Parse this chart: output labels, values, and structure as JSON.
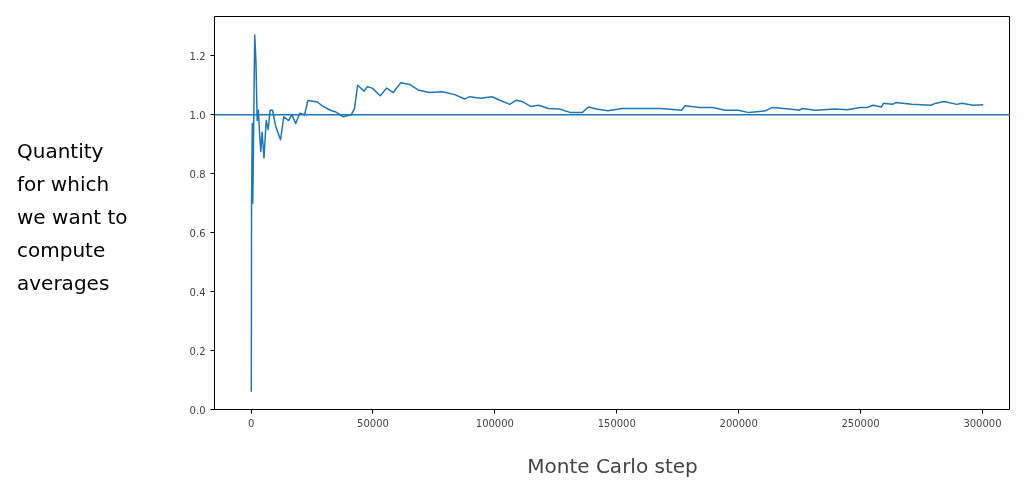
{
  "chart_data": {
    "type": "line",
    "xlabel": "Monte Carlo step",
    "ylabel": "Quantity for which we want to compute averages",
    "xlim": [
      -15000,
      311500
    ],
    "ylim": [
      0,
      1.333
    ],
    "xticks": [
      0,
      50000,
      100000,
      150000,
      200000,
      250000,
      300000
    ],
    "yticks": [
      {
        "value": 0,
        "label": "0.0"
      },
      {
        "value": 0.2,
        "label": "0.2"
      },
      {
        "value": 0.4,
        "label": "0.4"
      },
      {
        "value": 0.6,
        "label": "0.6"
      },
      {
        "value": 0.8,
        "label": "0.8"
      },
      {
        "value": 1.0,
        "label": "1.0"
      },
      {
        "value": 1.2,
        "label": "1.2"
      }
    ],
    "grid": false,
    "marker": "none",
    "line_style": "solid",
    "ref_lines": [
      {
        "axis": "y",
        "value": 1.0,
        "color": "#1f77b4"
      }
    ],
    "x": [
      100,
      200,
      500,
      700,
      1500,
      2000,
      2500,
      3000,
      3600,
      4000,
      4500,
      5300,
      6200,
      7000,
      7800,
      8800,
      10100,
      12100,
      13400,
      15400,
      16700,
      18300,
      20000,
      22000,
      23300,
      27200,
      29200,
      32500,
      34500,
      37800,
      41100,
      42400,
      43700,
      46400,
      47700,
      49700,
      53000,
      55600,
      58300,
      61400,
      65200,
      68500,
      73100,
      78400,
      83600,
      87600,
      89600,
      94200,
      98800,
      102100,
      106100,
      108700,
      111300,
      114700,
      118000,
      121900,
      126500,
      131100,
      135800,
      138400,
      141700,
      146300,
      152300,
      160200,
      168100,
      176600,
      178000,
      184000,
      189200,
      194500,
      199800,
      204300,
      211000,
      213600,
      220900,
      224800,
      226100,
      231400,
      239300,
      244600,
      249900,
      252500,
      255200,
      258500,
      259400,
      263100,
      264400,
      271000,
      278900,
      280900,
      284200,
      289500,
      291600,
      296100,
      300300
    ],
    "series": [
      {
        "color": "#1f77b4",
        "values": [
          0.06,
          0.7,
          0.97,
          0.7,
          1.27,
          1.18,
          0.98,
          1.015,
          0.92,
          0.875,
          0.94,
          0.853,
          0.98,
          0.95,
          1.015,
          1.015,
          0.96,
          0.915,
          0.993,
          0.98,
          1.0,
          0.97,
          1.005,
          1.0,
          1.048,
          1.043,
          1.03,
          1.015,
          1.01,
          0.993,
          1.0,
          1.02,
          1.1,
          1.08,
          1.095,
          1.09,
          1.064,
          1.09,
          1.075,
          1.108,
          1.102,
          1.084,
          1.075,
          1.078,
          1.068,
          1.053,
          1.061,
          1.056,
          1.061,
          1.049,
          1.035,
          1.049,
          1.044,
          1.028,
          1.032,
          1.021,
          1.019,
          1.007,
          1.007,
          1.026,
          1.019,
          1.013,
          1.021,
          1.021,
          1.021,
          1.015,
          1.03,
          1.024,
          1.024,
          1.015,
          1.015,
          1.007,
          1.013,
          1.024,
          1.019,
          1.015,
          1.021,
          1.015,
          1.019,
          1.017,
          1.024,
          1.024,
          1.032,
          1.026,
          1.039,
          1.035,
          1.041,
          1.035,
          1.032,
          1.039,
          1.045,
          1.035,
          1.039,
          1.032,
          1.034
        ]
      }
    ]
  }
}
